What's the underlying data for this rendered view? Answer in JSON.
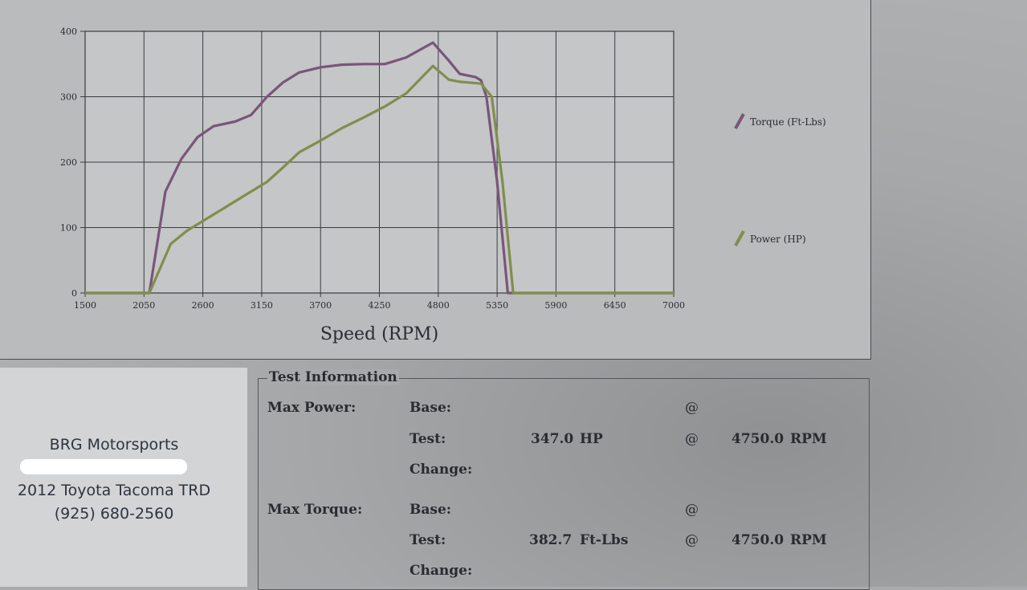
{
  "chart_data": {
    "type": "line",
    "xlabel": "Speed (RPM)",
    "ylabel": "",
    "xlim": [
      1500,
      7000
    ],
    "ylim": [
      0,
      400
    ],
    "x_ticks": [
      "1500",
      "2050",
      "2600",
      "3150",
      "3700",
      "4250",
      "4800",
      "5350",
      "5900",
      "6450",
      "7000"
    ],
    "y_ticks": [
      "0",
      "100",
      "200",
      "300",
      "400"
    ],
    "grid": true,
    "legend_position": "right",
    "series": [
      {
        "name": "Torque (Ft-Lbs)",
        "color": "#7a5579",
        "points": [
          [
            1500,
            0
          ],
          [
            2100,
            0
          ],
          [
            2250,
            155
          ],
          [
            2400,
            205
          ],
          [
            2550,
            238
          ],
          [
            2700,
            255
          ],
          [
            2900,
            262
          ],
          [
            3050,
            272
          ],
          [
            3200,
            300
          ],
          [
            3350,
            322
          ],
          [
            3500,
            337
          ],
          [
            3700,
            345
          ],
          [
            3900,
            349
          ],
          [
            4100,
            350
          ],
          [
            4300,
            350
          ],
          [
            4500,
            360
          ],
          [
            4750,
            382.7
          ],
          [
            4900,
            355
          ],
          [
            5000,
            335
          ],
          [
            5150,
            330
          ],
          [
            5200,
            325
          ],
          [
            5250,
            300
          ],
          [
            5350,
            170
          ],
          [
            5450,
            0
          ],
          [
            7000,
            0
          ]
        ]
      },
      {
        "name": "Power (HP)",
        "color": "#828d4c",
        "points": [
          [
            1500,
            0
          ],
          [
            2100,
            0
          ],
          [
            2300,
            75
          ],
          [
            2450,
            95
          ],
          [
            2600,
            110
          ],
          [
            2800,
            130
          ],
          [
            3000,
            150
          ],
          [
            3200,
            170
          ],
          [
            3350,
            192
          ],
          [
            3500,
            215
          ],
          [
            3700,
            233
          ],
          [
            3900,
            252
          ],
          [
            4100,
            268
          ],
          [
            4300,
            285
          ],
          [
            4500,
            305
          ],
          [
            4750,
            347
          ],
          [
            4900,
            326
          ],
          [
            5000,
            323
          ],
          [
            5200,
            320
          ],
          [
            5300,
            300
          ],
          [
            5400,
            170
          ],
          [
            5500,
            0
          ],
          [
            7000,
            0
          ]
        ]
      }
    ]
  },
  "shop": {
    "name": "BRG Motorsports",
    "vehicle": "2012 Toyota Tacoma TRD",
    "phone": "(925) 680-2560"
  },
  "test_info": {
    "title": "Test Information",
    "max_power": {
      "label": "Max Power:",
      "base_label": "Base:",
      "test_label": "Test:",
      "change_label": "Change:",
      "test_value": "347.0",
      "unit": "HP",
      "rpm": "4750.0",
      "rpm_unit": "RPM"
    },
    "max_torque": {
      "label": "Max Torque:",
      "base_label": "Base:",
      "test_label": "Test:",
      "change_label": "Change:",
      "test_value": "382.7",
      "unit": "Ft-Lbs",
      "rpm": "4750.0",
      "rpm_unit": "RPM"
    },
    "at_symbol": "@"
  }
}
